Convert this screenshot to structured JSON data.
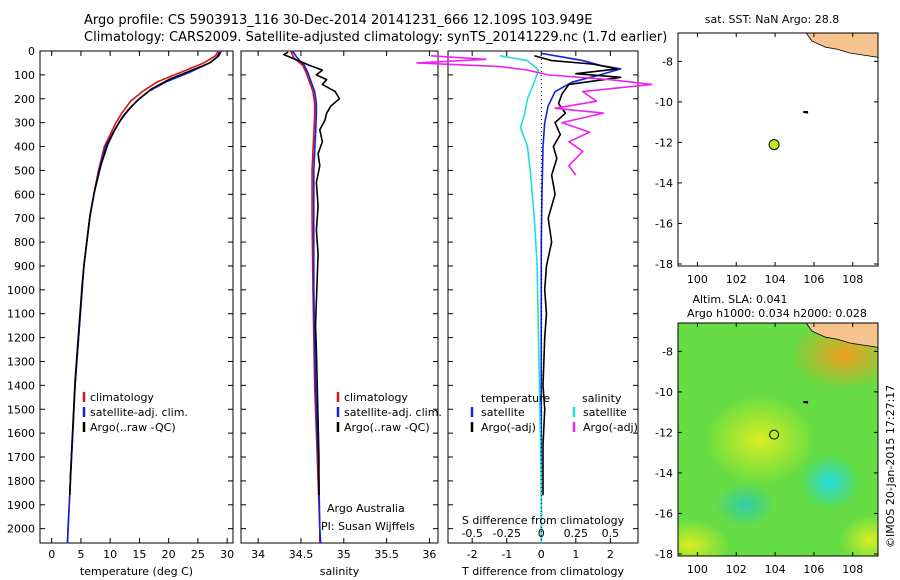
{
  "header": {
    "line1": "Argo profile: CS 5903913_116 30-Dec-2014 20141231_666 12.109S 103.949E",
    "line2": "Climatology: CARS2009. Satellite-adjusted climatology: synTS_20141229.nc (1.7d earlier)"
  },
  "side_text": "©IMOS 20-Jan-2015 17:27:17",
  "colors": {
    "climatology": "#dd1111",
    "satellite": "#1122dd",
    "argo": "#000000",
    "sat_s": "#22dddd",
    "argo_s": "#ee22ee",
    "land": "#f6c38e"
  },
  "chart_data": [
    {
      "type": "line",
      "xlabel": "temperature (deg C)",
      "xlim": [
        -2,
        31
      ],
      "xticks": [
        0,
        5,
        10,
        15,
        20,
        25,
        30
      ],
      "ylim": [
        0,
        2060
      ],
      "yticks": [
        0,
        100,
        200,
        300,
        400,
        500,
        600,
        700,
        800,
        900,
        1000,
        1100,
        1200,
        1300,
        1400,
        1500,
        1600,
        1700,
        1800,
        1900,
        2000
      ],
      "legend": {
        "placement": "lower-center",
        "items": [
          "climatology",
          "satellite-adj. clim.",
          "Argo(..raw -QC)"
        ]
      },
      "series": [
        {
          "name": "climatology",
          "color": "#dd1111",
          "points": [
            [
              28.5,
              0
            ],
            [
              28,
              20
            ],
            [
              26,
              50
            ],
            [
              22,
              90
            ],
            [
              18,
              130
            ],
            [
              15.5,
              170
            ],
            [
              13.5,
              210
            ],
            [
              12,
              260
            ],
            [
              11,
              300
            ],
            [
              10,
              350
            ],
            [
              9,
              400
            ],
            [
              8,
              500
            ],
            [
              7.2,
              600
            ],
            [
              6.5,
              700
            ],
            [
              6,
              800
            ],
            [
              5.5,
              900
            ],
            [
              5.2,
              1000
            ],
            [
              4.9,
              1100
            ],
            [
              4.6,
              1200
            ],
            [
              4.3,
              1300
            ],
            [
              4,
              1400
            ],
            [
              3.8,
              1500
            ],
            [
              3.6,
              1600
            ],
            [
              3.4,
              1700
            ],
            [
              3.2,
              1800
            ],
            [
              3,
              1900
            ],
            [
              2.8,
              2000
            ],
            [
              2.7,
              2060
            ]
          ]
        },
        {
          "name": "satellite-adj. clim.",
          "color": "#1122dd",
          "points": [
            [
              29,
              0
            ],
            [
              28.6,
              20
            ],
            [
              27,
              50
            ],
            [
              23.5,
              90
            ],
            [
              19.5,
              130
            ],
            [
              16.5,
              170
            ],
            [
              14.5,
              210
            ],
            [
              12.7,
              260
            ],
            [
              11.5,
              300
            ],
            [
              10.3,
              350
            ],
            [
              9.2,
              400
            ],
            [
              8.1,
              500
            ],
            [
              7.2,
              600
            ],
            [
              6.5,
              700
            ],
            [
              6,
              800
            ],
            [
              5.5,
              900
            ],
            [
              5.2,
              1000
            ],
            [
              4.9,
              1100
            ],
            [
              4.6,
              1200
            ],
            [
              4.3,
              1300
            ],
            [
              4,
              1400
            ],
            [
              3.8,
              1500
            ],
            [
              3.6,
              1600
            ],
            [
              3.4,
              1700
            ],
            [
              3.2,
              1800
            ],
            [
              3,
              1900
            ],
            [
              2.8,
              2000
            ],
            [
              2.7,
              2060
            ]
          ]
        },
        {
          "name": "Argo(..raw -QC)",
          "color": "#000000",
          "points": [
            [
              28.7,
              5
            ],
            [
              28.3,
              25
            ],
            [
              27,
              50
            ],
            [
              24,
              80
            ],
            [
              20,
              120
            ],
            [
              17,
              160
            ],
            [
              15,
              200
            ],
            [
              13.3,
              240
            ],
            [
              12,
              280
            ],
            [
              10.8,
              330
            ],
            [
              9.6,
              390
            ],
            [
              8.4,
              480
            ],
            [
              7.4,
              580
            ],
            [
              6.6,
              680
            ],
            [
              6.1,
              780
            ],
            [
              5.6,
              880
            ],
            [
              5.2,
              980
            ],
            [
              4.9,
              1080
            ],
            [
              4.6,
              1180
            ],
            [
              4.3,
              1280
            ],
            [
              4,
              1380
            ],
            [
              3.8,
              1480
            ],
            [
              3.6,
              1580
            ],
            [
              3.4,
              1680
            ],
            [
              3.2,
              1780
            ],
            [
              3.1,
              1860
            ]
          ]
        }
      ]
    },
    {
      "type": "line",
      "xlabel": "salinity",
      "xlim": [
        33.8,
        36.1
      ],
      "xticks": [
        34,
        34.5,
        35,
        35.5,
        36
      ],
      "ylim": [
        0,
        2060
      ],
      "legend": {
        "placement": "lower-center",
        "items": [
          "climatology",
          "satellite-adj. clim.",
          "Argo(..raw -QC)"
        ]
      },
      "annotation": [
        "Argo Australia",
        "PI: Susan Wijffels"
      ],
      "series": [
        {
          "name": "climatology",
          "color": "#dd1111",
          "points": [
            [
              34.38,
              0
            ],
            [
              34.42,
              30
            ],
            [
              34.52,
              60
            ],
            [
              34.56,
              90
            ],
            [
              34.6,
              130
            ],
            [
              34.64,
              170
            ],
            [
              34.66,
              220
            ],
            [
              34.66,
              270
            ],
            [
              34.65,
              350
            ],
            [
              34.64,
              420
            ],
            [
              34.63,
              500
            ],
            [
              34.63,
              700
            ],
            [
              34.64,
              1000
            ],
            [
              34.65,
              1200
            ],
            [
              34.66,
              1400
            ],
            [
              34.68,
              1600
            ],
            [
              34.7,
              1800
            ],
            [
              34.72,
              2000
            ],
            [
              34.72,
              2060
            ]
          ]
        },
        {
          "name": "satellite-adj. clim.",
          "color": "#1122dd",
          "points": [
            [
              34.4,
              0
            ],
            [
              34.46,
              30
            ],
            [
              34.54,
              60
            ],
            [
              34.58,
              90
            ],
            [
              34.62,
              130
            ],
            [
              34.66,
              170
            ],
            [
              34.68,
              220
            ],
            [
              34.68,
              270
            ],
            [
              34.67,
              350
            ],
            [
              34.66,
              420
            ],
            [
              34.65,
              500
            ],
            [
              34.65,
              700
            ],
            [
              34.65,
              1000
            ],
            [
              34.66,
              1200
            ],
            [
              34.67,
              1400
            ],
            [
              34.69,
              1600
            ],
            [
              34.71,
              1800
            ],
            [
              34.72,
              2000
            ],
            [
              34.73,
              2060
            ]
          ]
        },
        {
          "name": "Argo(..raw -QC)",
          "color": "#000000",
          "points": [
            [
              34.35,
              5
            ],
            [
              34.3,
              15
            ],
            [
              34.4,
              30
            ],
            [
              34.5,
              45
            ],
            [
              34.6,
              60
            ],
            [
              34.75,
              80
            ],
            [
              34.68,
              100
            ],
            [
              34.8,
              120
            ],
            [
              34.75,
              140
            ],
            [
              34.9,
              170
            ],
            [
              34.95,
              200
            ],
            [
              34.85,
              230
            ],
            [
              34.8,
              260
            ],
            [
              34.78,
              290
            ],
            [
              34.72,
              330
            ],
            [
              34.75,
              380
            ],
            [
              34.7,
              430
            ],
            [
              34.72,
              480
            ],
            [
              34.68,
              550
            ],
            [
              34.7,
              650
            ],
            [
              34.68,
              750
            ],
            [
              34.7,
              850
            ],
            [
              34.69,
              950
            ],
            [
              34.68,
              1050
            ],
            [
              34.67,
              1150
            ],
            [
              34.68,
              1250
            ],
            [
              34.69,
              1400
            ],
            [
              34.7,
              1550
            ],
            [
              34.71,
              1700
            ],
            [
              34.71,
              1860
            ]
          ]
        }
      ]
    },
    {
      "type": "line",
      "xlabel": "T difference from climatology",
      "xlabel_top": "S difference from climatology",
      "xlim": [
        -2.7,
        2.8
      ],
      "xticks": [
        -2,
        -1,
        0,
        1,
        2
      ],
      "xticks_top": [
        -0.5,
        -0.25,
        0,
        0.25,
        0.5
      ],
      "ylim": [
        0,
        2060
      ],
      "legend": {
        "placement": "lower-center",
        "headers": [
          "temperature",
          "salinity"
        ],
        "items": [
          "satellite",
          "Argo(-adj)",
          "satellite",
          "Argo(-adj)"
        ]
      },
      "series": [
        {
          "name": "satellite",
          "group": "temperature",
          "color": "#1122dd",
          "points": [
            [
              0,
              10
            ],
            [
              0.6,
              25
            ],
            [
              1.2,
              40
            ],
            [
              1.7,
              60
            ],
            [
              2.3,
              75
            ],
            [
              1.7,
              100
            ],
            [
              0.9,
              130
            ],
            [
              0.4,
              170
            ],
            [
              0.2,
              230
            ],
            [
              0.1,
              300
            ],
            [
              0.05,
              400
            ],
            [
              0.02,
              600
            ],
            [
              0,
              800
            ],
            [
              0,
              1200
            ],
            [
              0,
              1600
            ],
            [
              0,
              2000
            ],
            [
              0,
              2060
            ]
          ]
        },
        {
          "name": "Argo(-adj)",
          "group": "temperature",
          "color": "#000000",
          "points": [
            [
              -0.2,
              20
            ],
            [
              0.3,
              40
            ],
            [
              1.5,
              55
            ],
            [
              2.2,
              75
            ],
            [
              1.0,
              95
            ],
            [
              2.3,
              110
            ],
            [
              0.8,
              140
            ],
            [
              0.6,
              180
            ],
            [
              0.5,
              220
            ],
            [
              0.7,
              260
            ],
            [
              0.4,
              300
            ],
            [
              0.55,
              350
            ],
            [
              0.35,
              400
            ],
            [
              0.45,
              450
            ],
            [
              0.3,
              520
            ],
            [
              0.4,
              600
            ],
            [
              0.2,
              700
            ],
            [
              0.3,
              800
            ],
            [
              0.15,
              900
            ],
            [
              0.1,
              1000
            ],
            [
              0.15,
              1100
            ],
            [
              0.1,
              1200
            ],
            [
              0.05,
              1400
            ],
            [
              0.1,
              1500
            ],
            [
              0.05,
              1650
            ],
            [
              0.05,
              1860
            ]
          ]
        },
        {
          "name": "satellite",
          "group": "salinity",
          "color": "#22dddd",
          "points": [
            [
              -0.3,
              20
            ],
            [
              -0.1,
              40
            ],
            [
              -0.02,
              80
            ],
            [
              -0.05,
              130
            ],
            [
              -0.1,
              200
            ],
            [
              -0.12,
              260
            ],
            [
              -0.15,
              320
            ],
            [
              -0.1,
              400
            ],
            [
              -0.08,
              500
            ],
            [
              -0.05,
              700
            ],
            [
              -0.03,
              900
            ],
            [
              -0.02,
              1200
            ],
            [
              -0.01,
              1500
            ],
            [
              0,
              1800
            ],
            [
              0,
              2060
            ]
          ]
        },
        {
          "name": "Argo(-adj)",
          "group": "salinity",
          "color": "#ee22ee",
          "points": [
            [
              -0.8,
              20
            ],
            [
              -0.4,
              35
            ],
            [
              -0.9,
              50
            ],
            [
              -0.3,
              65
            ],
            [
              -0.1,
              80
            ],
            [
              0.05,
              100
            ],
            [
              0.5,
              120
            ],
            [
              0.8,
              140
            ],
            [
              0.3,
              170
            ],
            [
              0.4,
              210
            ],
            [
              0.1,
              240
            ],
            [
              0.45,
              260
            ],
            [
              0.15,
              300
            ],
            [
              0.35,
              340
            ],
            [
              0.2,
              380
            ],
            [
              0.3,
              420
            ],
            [
              0.2,
              480
            ],
            [
              0.25,
              520
            ]
          ]
        }
      ]
    },
    {
      "type": "scatter",
      "title": "sat. SST: NaN Argo: 28.8",
      "xlim": [
        99,
        109.3
      ],
      "xticks": [
        100,
        102,
        104,
        106,
        108
      ],
      "ylim": [
        -18.1,
        -6.6
      ],
      "yticks": [
        -8,
        -10,
        -12,
        -14,
        -16,
        -18
      ],
      "points": [
        {
          "x": 103.949,
          "y": -12.109,
          "color": "#bbee22"
        }
      ]
    },
    {
      "type": "heatmap",
      "title": [
        "Altim. SLA: 0.041",
        "Argo h1000: 0.034 h2000: 0.028"
      ],
      "xlim": [
        99,
        109.3
      ],
      "xticks": [
        100,
        102,
        104,
        106,
        108
      ],
      "ylim": [
        -18.1,
        -6.6
      ],
      "yticks": [
        -8,
        -10,
        -12,
        -14,
        -16,
        -18
      ],
      "points": [
        {
          "x": 103.949,
          "y": -12.109
        }
      ]
    }
  ]
}
